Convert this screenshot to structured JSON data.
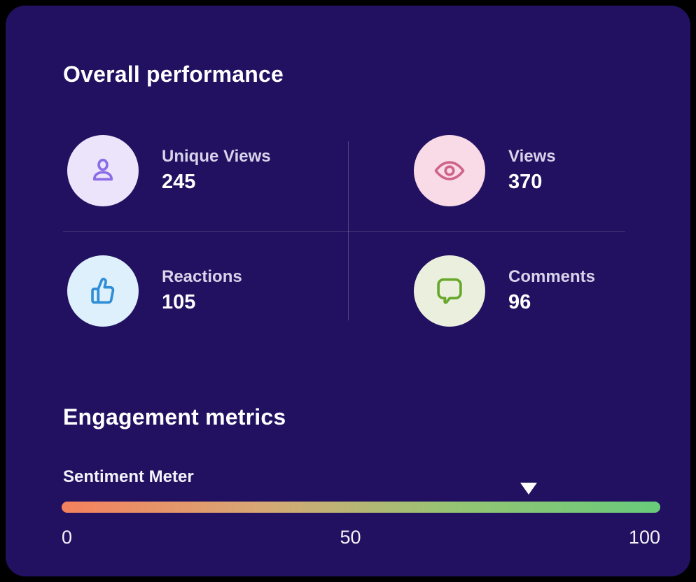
{
  "colors": {
    "page_background": "#000000",
    "card_background": "#221060",
    "heading_text": "#ffffff",
    "label_text": "#d8d3ea",
    "value_text": "#ffffff",
    "divider": "rgba(255,255,255,0.2)",
    "marker": "#ffffff"
  },
  "overall": {
    "title": "Overall performance",
    "metrics": [
      {
        "label": "Unique Views",
        "value": "245",
        "icon": "person-icon",
        "circle_color": "#ece4fb",
        "icon_color": "#8b6ce6"
      },
      {
        "label": "Views",
        "value": "370",
        "icon": "eye-icon",
        "circle_color": "#f8dbe7",
        "icon_color": "#d0638a"
      },
      {
        "label": "Reactions",
        "value": "105",
        "icon": "thumbs-up-icon",
        "circle_color": "#def0fb",
        "icon_color": "#2f8ed6"
      },
      {
        "label": "Comments",
        "value": "96",
        "icon": "comment-icon",
        "circle_color": "#eaf0dd",
        "icon_color": "#67a82b"
      }
    ]
  },
  "engagement": {
    "title": "Engagement metrics",
    "sentiment": {
      "label": "Sentiment Meter",
      "value": 78,
      "min": 0,
      "max": 100,
      "scale_labels": {
        "min": "0",
        "mid": "50",
        "max": "100"
      },
      "gradient": [
        "#f5815e",
        "#d7a874",
        "#93c573",
        "#68ca7b"
      ]
    }
  },
  "chart_data": {
    "type": "bar",
    "title": "Overall performance",
    "categories": [
      "Unique Views",
      "Views",
      "Reactions",
      "Comments"
    ],
    "values": [
      245,
      370,
      105,
      96
    ],
    "meter": {
      "name": "Sentiment Meter",
      "value": 78,
      "range": [
        0,
        100
      ],
      "ticks": [
        0,
        50,
        100
      ]
    }
  }
}
